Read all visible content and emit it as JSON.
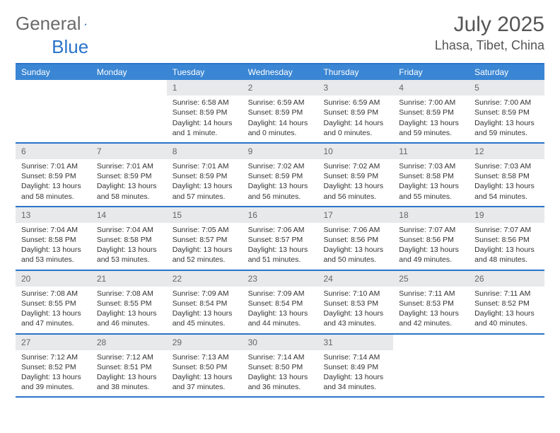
{
  "logo": {
    "text1": "General",
    "text2": "Blue"
  },
  "title": "July 2025",
  "location": "Lhasa, Tibet, China",
  "colors": {
    "header_bg": "#3a86d4",
    "border": "#2a74c9",
    "daynum_bg": "#e7e9eb",
    "text": "#333333",
    "muted": "#666666"
  },
  "day_labels": [
    "Sunday",
    "Monday",
    "Tuesday",
    "Wednesday",
    "Thursday",
    "Friday",
    "Saturday"
  ],
  "weeks": [
    [
      null,
      null,
      {
        "n": "1",
        "sr": "Sunrise: 6:58 AM",
        "ss": "Sunset: 8:59 PM",
        "d1": "Daylight: 14 hours",
        "d2": "and 1 minute."
      },
      {
        "n": "2",
        "sr": "Sunrise: 6:59 AM",
        "ss": "Sunset: 8:59 PM",
        "d1": "Daylight: 14 hours",
        "d2": "and 0 minutes."
      },
      {
        "n": "3",
        "sr": "Sunrise: 6:59 AM",
        "ss": "Sunset: 8:59 PM",
        "d1": "Daylight: 14 hours",
        "d2": "and 0 minutes."
      },
      {
        "n": "4",
        "sr": "Sunrise: 7:00 AM",
        "ss": "Sunset: 8:59 PM",
        "d1": "Daylight: 13 hours",
        "d2": "and 59 minutes."
      },
      {
        "n": "5",
        "sr": "Sunrise: 7:00 AM",
        "ss": "Sunset: 8:59 PM",
        "d1": "Daylight: 13 hours",
        "d2": "and 59 minutes."
      }
    ],
    [
      {
        "n": "6",
        "sr": "Sunrise: 7:01 AM",
        "ss": "Sunset: 8:59 PM",
        "d1": "Daylight: 13 hours",
        "d2": "and 58 minutes."
      },
      {
        "n": "7",
        "sr": "Sunrise: 7:01 AM",
        "ss": "Sunset: 8:59 PM",
        "d1": "Daylight: 13 hours",
        "d2": "and 58 minutes."
      },
      {
        "n": "8",
        "sr": "Sunrise: 7:01 AM",
        "ss": "Sunset: 8:59 PM",
        "d1": "Daylight: 13 hours",
        "d2": "and 57 minutes."
      },
      {
        "n": "9",
        "sr": "Sunrise: 7:02 AM",
        "ss": "Sunset: 8:59 PM",
        "d1": "Daylight: 13 hours",
        "d2": "and 56 minutes."
      },
      {
        "n": "10",
        "sr": "Sunrise: 7:02 AM",
        "ss": "Sunset: 8:59 PM",
        "d1": "Daylight: 13 hours",
        "d2": "and 56 minutes."
      },
      {
        "n": "11",
        "sr": "Sunrise: 7:03 AM",
        "ss": "Sunset: 8:58 PM",
        "d1": "Daylight: 13 hours",
        "d2": "and 55 minutes."
      },
      {
        "n": "12",
        "sr": "Sunrise: 7:03 AM",
        "ss": "Sunset: 8:58 PM",
        "d1": "Daylight: 13 hours",
        "d2": "and 54 minutes."
      }
    ],
    [
      {
        "n": "13",
        "sr": "Sunrise: 7:04 AM",
        "ss": "Sunset: 8:58 PM",
        "d1": "Daylight: 13 hours",
        "d2": "and 53 minutes."
      },
      {
        "n": "14",
        "sr": "Sunrise: 7:04 AM",
        "ss": "Sunset: 8:58 PM",
        "d1": "Daylight: 13 hours",
        "d2": "and 53 minutes."
      },
      {
        "n": "15",
        "sr": "Sunrise: 7:05 AM",
        "ss": "Sunset: 8:57 PM",
        "d1": "Daylight: 13 hours",
        "d2": "and 52 minutes."
      },
      {
        "n": "16",
        "sr": "Sunrise: 7:06 AM",
        "ss": "Sunset: 8:57 PM",
        "d1": "Daylight: 13 hours",
        "d2": "and 51 minutes."
      },
      {
        "n": "17",
        "sr": "Sunrise: 7:06 AM",
        "ss": "Sunset: 8:56 PM",
        "d1": "Daylight: 13 hours",
        "d2": "and 50 minutes."
      },
      {
        "n": "18",
        "sr": "Sunrise: 7:07 AM",
        "ss": "Sunset: 8:56 PM",
        "d1": "Daylight: 13 hours",
        "d2": "and 49 minutes."
      },
      {
        "n": "19",
        "sr": "Sunrise: 7:07 AM",
        "ss": "Sunset: 8:56 PM",
        "d1": "Daylight: 13 hours",
        "d2": "and 48 minutes."
      }
    ],
    [
      {
        "n": "20",
        "sr": "Sunrise: 7:08 AM",
        "ss": "Sunset: 8:55 PM",
        "d1": "Daylight: 13 hours",
        "d2": "and 47 minutes."
      },
      {
        "n": "21",
        "sr": "Sunrise: 7:08 AM",
        "ss": "Sunset: 8:55 PM",
        "d1": "Daylight: 13 hours",
        "d2": "and 46 minutes."
      },
      {
        "n": "22",
        "sr": "Sunrise: 7:09 AM",
        "ss": "Sunset: 8:54 PM",
        "d1": "Daylight: 13 hours",
        "d2": "and 45 minutes."
      },
      {
        "n": "23",
        "sr": "Sunrise: 7:09 AM",
        "ss": "Sunset: 8:54 PM",
        "d1": "Daylight: 13 hours",
        "d2": "and 44 minutes."
      },
      {
        "n": "24",
        "sr": "Sunrise: 7:10 AM",
        "ss": "Sunset: 8:53 PM",
        "d1": "Daylight: 13 hours",
        "d2": "and 43 minutes."
      },
      {
        "n": "25",
        "sr": "Sunrise: 7:11 AM",
        "ss": "Sunset: 8:53 PM",
        "d1": "Daylight: 13 hours",
        "d2": "and 42 minutes."
      },
      {
        "n": "26",
        "sr": "Sunrise: 7:11 AM",
        "ss": "Sunset: 8:52 PM",
        "d1": "Daylight: 13 hours",
        "d2": "and 40 minutes."
      }
    ],
    [
      {
        "n": "27",
        "sr": "Sunrise: 7:12 AM",
        "ss": "Sunset: 8:52 PM",
        "d1": "Daylight: 13 hours",
        "d2": "and 39 minutes."
      },
      {
        "n": "28",
        "sr": "Sunrise: 7:12 AM",
        "ss": "Sunset: 8:51 PM",
        "d1": "Daylight: 13 hours",
        "d2": "and 38 minutes."
      },
      {
        "n": "29",
        "sr": "Sunrise: 7:13 AM",
        "ss": "Sunset: 8:50 PM",
        "d1": "Daylight: 13 hours",
        "d2": "and 37 minutes."
      },
      {
        "n": "30",
        "sr": "Sunrise: 7:14 AM",
        "ss": "Sunset: 8:50 PM",
        "d1": "Daylight: 13 hours",
        "d2": "and 36 minutes."
      },
      {
        "n": "31",
        "sr": "Sunrise: 7:14 AM",
        "ss": "Sunset: 8:49 PM",
        "d1": "Daylight: 13 hours",
        "d2": "and 34 minutes."
      },
      null,
      null
    ]
  ]
}
